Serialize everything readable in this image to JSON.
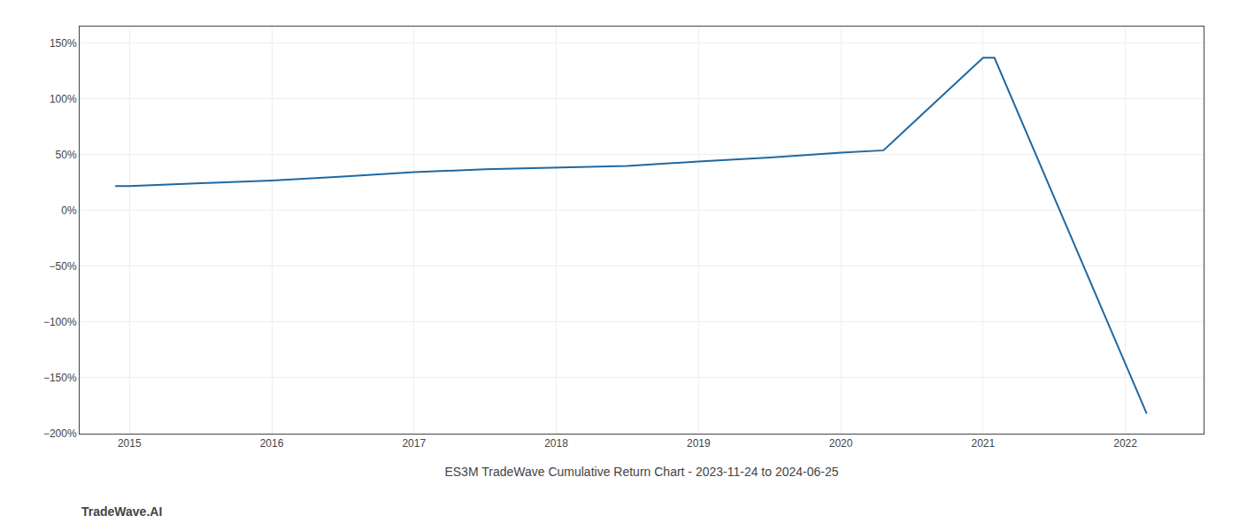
{
  "chart_data": {
    "type": "line",
    "xlabel": "ES3M TradeWave Cumulative Return Chart - 2023-11-24 to 2024-06-25",
    "annotations": [
      {
        "text": "TradeWave.AI"
      }
    ],
    "x": [
      2014.9,
      2015.0,
      2015.5,
      2016.0,
      2016.5,
      2017.0,
      2017.5,
      2018.0,
      2018.5,
      2019.0,
      2019.5,
      2020.0,
      2020.3,
      2021.0,
      2021.08,
      2022.15
    ],
    "values": [
      0.22,
      0.22,
      0.245,
      0.27,
      0.305,
      0.345,
      0.37,
      0.385,
      0.4,
      0.44,
      0.475,
      0.52,
      0.54,
      1.37,
      1.37,
      -1.82
    ],
    "color": "#2068a0",
    "xlim": [
      2014.65,
      2022.55
    ],
    "ylim": [
      -2.0,
      1.65
    ],
    "xticks": [
      2015,
      2016,
      2017,
      2018,
      2019,
      2020,
      2021,
      2022
    ],
    "yticks": [
      {
        "value": 1.5,
        "label": "150%"
      },
      {
        "value": 1.0,
        "label": "100%"
      },
      {
        "value": 0.5,
        "label": "50%"
      },
      {
        "value": 0.0,
        "label": "0%"
      },
      {
        "value": -0.5,
        "label": "−50%"
      },
      {
        "value": -1.0,
        "label": "−100%"
      },
      {
        "value": -1.5,
        "label": "−150%"
      },
      {
        "value": -2.0,
        "label": "−200%"
      }
    ],
    "grid": true
  }
}
